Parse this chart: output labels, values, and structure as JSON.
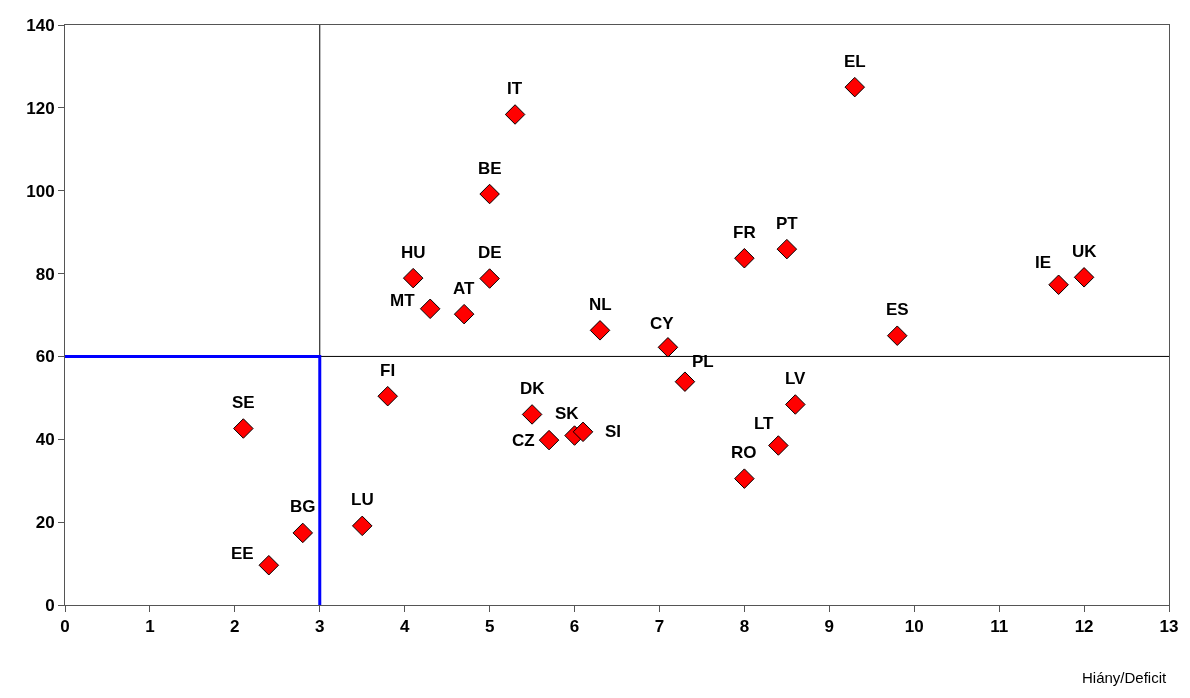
{
  "chart_data": {
    "type": "scatter",
    "xlabel": "Hiány/Deficit",
    "xlim": [
      0,
      13
    ],
    "ylim": [
      0,
      140
    ],
    "xticks": [
      0,
      1,
      2,
      3,
      4,
      5,
      6,
      7,
      8,
      9,
      10,
      11,
      12,
      13
    ],
    "yticks": [
      0,
      20,
      40,
      60,
      80,
      100,
      120,
      140
    ],
    "grid": false,
    "marker": "diamond",
    "series": [
      {
        "color": "#ff0000",
        "x": [
          5.3,
          9.3,
          5.0,
          4.1,
          5.0,
          4.3,
          4.7,
          6.3,
          8.0,
          8.5,
          11.7,
          12.0,
          9.8,
          7.1,
          7.3,
          3.8,
          2.1,
          5.5,
          5.7,
          6.0,
          6.1,
          8.6,
          8.4,
          8.0,
          3.5,
          2.8,
          2.4
        ],
        "values": [
          118.4,
          125,
          99.2,
          78.9,
          78.8,
          71.5,
          70.2,
          66.3,
          83.7,
          85.9,
          77.3,
          79.1,
          65.0,
          62.2,
          53.9,
          50.4,
          42.6,
          46.0,
          39.8,
          40.9,
          41.8,
          48.4,
          38.5,
          30.5,
          19.1,
          17.4,
          9.6
        ]
      },
      {
        "type": "line",
        "marker": "none",
        "color": "#0000ff",
        "x": [
          0,
          3,
          3
        ],
        "values": [
          60,
          60,
          0
        ]
      }
    ],
    "ref_lines": [
      {
        "axis": "x",
        "value": 3,
        "color": "#000000"
      },
      {
        "axis": "y",
        "value": 60,
        "color": "#000000"
      }
    ],
    "annotations": [
      {
        "text": "IT",
        "x": 5.3,
        "y": 118.4
      },
      {
        "text": "EL",
        "x": 9.3,
        "y": 125
      },
      {
        "text": "BE",
        "x": 5.0,
        "y": 99.2
      },
      {
        "text": "HU",
        "x": 4.1,
        "y": 78.9
      },
      {
        "text": "DE",
        "x": 5.0,
        "y": 78.8
      },
      {
        "text": "MT",
        "x": 4.3,
        "y": 71.5
      },
      {
        "text": "AT",
        "x": 4.7,
        "y": 70.2
      },
      {
        "text": "NL",
        "x": 6.3,
        "y": 66.3
      },
      {
        "text": "FR",
        "x": 8.0,
        "y": 83.7
      },
      {
        "text": "PT",
        "x": 8.5,
        "y": 85.9
      },
      {
        "text": "IE",
        "x": 11.7,
        "y": 77.3
      },
      {
        "text": "UK",
        "x": 12.0,
        "y": 79.1
      },
      {
        "text": "ES",
        "x": 9.8,
        "y": 65.0
      },
      {
        "text": "CY",
        "x": 7.1,
        "y": 62.2
      },
      {
        "text": "PL",
        "x": 7.3,
        "y": 53.9
      },
      {
        "text": "FI",
        "x": 3.8,
        "y": 50.4
      },
      {
        "text": "SE",
        "x": 2.1,
        "y": 42.6
      },
      {
        "text": "DK",
        "x": 5.5,
        "y": 46.0
      },
      {
        "text": "CZ",
        "x": 5.7,
        "y": 39.8
      },
      {
        "text": "SK",
        "x": 6.0,
        "y": 40.9
      },
      {
        "text": "SI",
        "x": 6.1,
        "y": 41.8
      },
      {
        "text": "LV",
        "x": 8.6,
        "y": 48.4
      },
      {
        "text": "LT",
        "x": 8.4,
        "y": 38.5
      },
      {
        "text": "RO",
        "x": 8.0,
        "y": 30.5
      },
      {
        "text": "LU",
        "x": 3.5,
        "y": 19.1
      },
      {
        "text": "BG",
        "x": 2.8,
        "y": 17.4
      },
      {
        "text": "EE",
        "x": 2.4,
        "y": 9.6
      }
    ]
  }
}
